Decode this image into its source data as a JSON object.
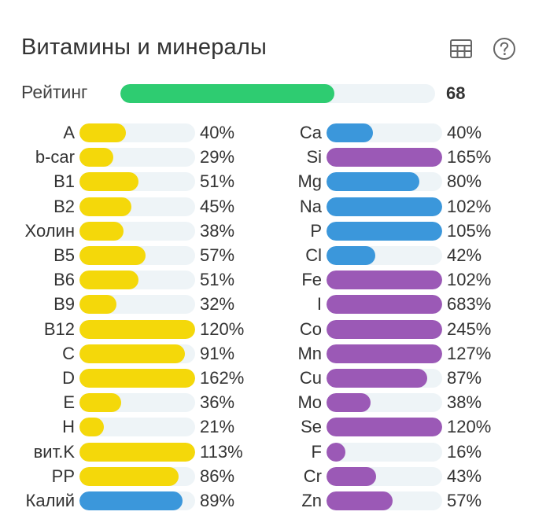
{
  "header": {
    "title": "Витамины и минералы",
    "table_icon": "table-icon",
    "help_icon": "help-icon"
  },
  "rating": {
    "label": "Рейтинг",
    "value": "68",
    "fraction": 0.68,
    "color": "#2ecc71"
  },
  "colors": {
    "yellow": "#f4d80a",
    "blue": "#3b97db",
    "purple": "#9b59b6",
    "track": "#eef4f7",
    "text": "#333333",
    "icon": "#666666"
  },
  "vitamins": [
    {
      "label": "A",
      "pct": "40%",
      "value": 40,
      "color": "#f4d80a"
    },
    {
      "label": "b-car",
      "pct": "29%",
      "value": 29,
      "color": "#f4d80a"
    },
    {
      "label": "B1",
      "pct": "51%",
      "value": 51,
      "color": "#f4d80a"
    },
    {
      "label": "B2",
      "pct": "45%",
      "value": 45,
      "color": "#f4d80a"
    },
    {
      "label": "Холин",
      "pct": "38%",
      "value": 38,
      "color": "#f4d80a"
    },
    {
      "label": "B5",
      "pct": "57%",
      "value": 57,
      "color": "#f4d80a"
    },
    {
      "label": "B6",
      "pct": "51%",
      "value": 51,
      "color": "#f4d80a"
    },
    {
      "label": "B9",
      "pct": "32%",
      "value": 32,
      "color": "#f4d80a"
    },
    {
      "label": "B12",
      "pct": "120%",
      "value": 120,
      "color": "#f4d80a"
    },
    {
      "label": "C",
      "pct": "91%",
      "value": 91,
      "color": "#f4d80a"
    },
    {
      "label": "D",
      "pct": "162%",
      "value": 162,
      "color": "#f4d80a"
    },
    {
      "label": "E",
      "pct": "36%",
      "value": 36,
      "color": "#f4d80a"
    },
    {
      "label": "H",
      "pct": "21%",
      "value": 21,
      "color": "#f4d80a"
    },
    {
      "label": "вит.K",
      "pct": "113%",
      "value": 113,
      "color": "#f4d80a"
    },
    {
      "label": "PP",
      "pct": "86%",
      "value": 86,
      "color": "#f4d80a"
    },
    {
      "label": "Калий",
      "pct": "89%",
      "value": 89,
      "color": "#3b97db"
    }
  ],
  "minerals": [
    {
      "label": "Ca",
      "pct": "40%",
      "value": 40,
      "color": "#3b97db"
    },
    {
      "label": "Si",
      "pct": "165%",
      "value": 165,
      "color": "#9b59b6"
    },
    {
      "label": "Mg",
      "pct": "80%",
      "value": 80,
      "color": "#3b97db"
    },
    {
      "label": "Na",
      "pct": "102%",
      "value": 102,
      "color": "#3b97db"
    },
    {
      "label": "P",
      "pct": "105%",
      "value": 105,
      "color": "#3b97db"
    },
    {
      "label": "Cl",
      "pct": "42%",
      "value": 42,
      "color": "#3b97db"
    },
    {
      "label": "Fe",
      "pct": "102%",
      "value": 102,
      "color": "#9b59b6"
    },
    {
      "label": "I",
      "pct": "683%",
      "value": 683,
      "color": "#9b59b6"
    },
    {
      "label": "Co",
      "pct": "245%",
      "value": 245,
      "color": "#9b59b6"
    },
    {
      "label": "Mn",
      "pct": "127%",
      "value": 127,
      "color": "#9b59b6"
    },
    {
      "label": "Cu",
      "pct": "87%",
      "value": 87,
      "color": "#9b59b6"
    },
    {
      "label": "Mo",
      "pct": "38%",
      "value": 38,
      "color": "#9b59b6"
    },
    {
      "label": "Se",
      "pct": "120%",
      "value": 120,
      "color": "#9b59b6"
    },
    {
      "label": "F",
      "pct": "16%",
      "value": 16,
      "color": "#9b59b6"
    },
    {
      "label": "Cr",
      "pct": "43%",
      "value": 43,
      "color": "#9b59b6"
    },
    {
      "label": "Zn",
      "pct": "57%",
      "value": 57,
      "color": "#9b59b6"
    }
  ]
}
